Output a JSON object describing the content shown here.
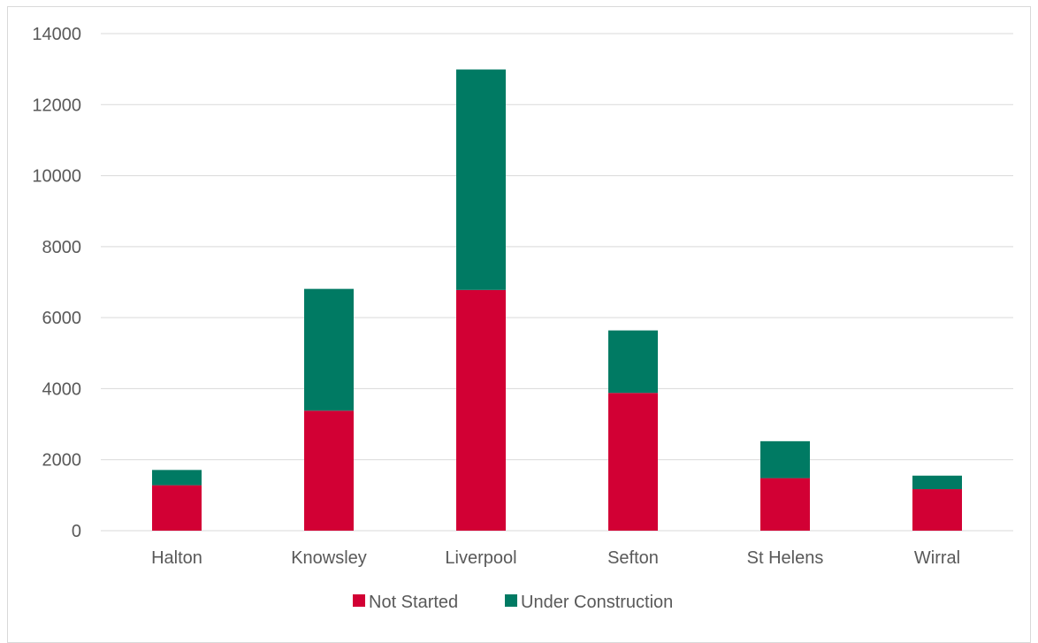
{
  "chart_data": {
    "type": "bar",
    "stacked": true,
    "categories": [
      "Halton",
      "Knowsley",
      "Liverpool",
      "Sefton",
      "St Helens",
      "Wirral"
    ],
    "series": [
      {
        "name": "Not Started",
        "color": "#d20034",
        "values": [
          1280,
          3380,
          6780,
          3880,
          1480,
          1170
        ]
      },
      {
        "name": "Under Construction",
        "color": "#007a63",
        "values": [
          430,
          3430,
          6210,
          1760,
          1040,
          380
        ]
      }
    ],
    "ylim": [
      0,
      14000
    ],
    "yticks": [
      0,
      2000,
      4000,
      6000,
      8000,
      10000,
      12000,
      14000
    ],
    "grid": true,
    "legend": "bottom",
    "title": "",
    "xlabel": "",
    "ylabel": ""
  }
}
